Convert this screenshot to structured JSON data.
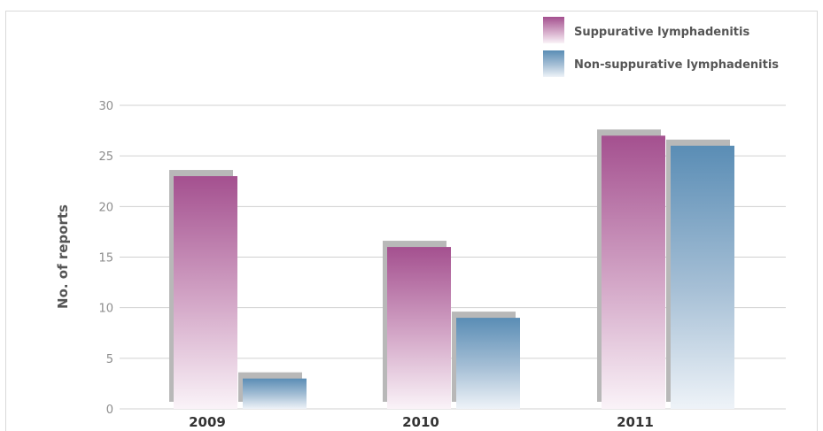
{
  "chart_data": {
    "type": "bar",
    "title": "",
    "xlabel": "",
    "ylabel": "No. of reports",
    "ylim": [
      0,
      30
    ],
    "yticks": [
      0,
      5,
      10,
      15,
      20,
      25,
      30
    ],
    "grid": true,
    "legend_position": "top-right",
    "categories": [
      "2009",
      "2010",
      "2011"
    ],
    "series": [
      {
        "name": "Suppurative lymphadenitis",
        "values": [
          23,
          16,
          27
        ],
        "color": "#a4508f"
      },
      {
        "name": "Non-suppurative lymphadenitis",
        "values": [
          3,
          9,
          26
        ],
        "color": "#5a8db5"
      }
    ]
  }
}
